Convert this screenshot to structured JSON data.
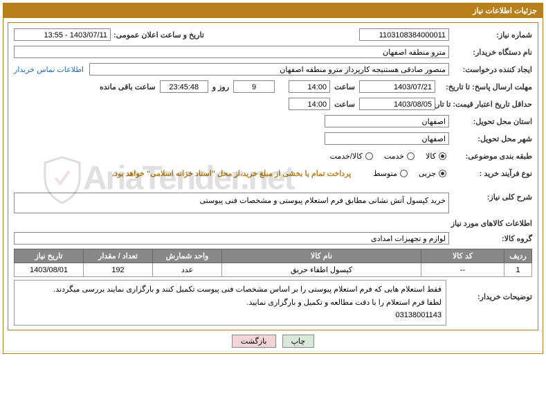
{
  "colors": {
    "accent": "#b8801a",
    "link": "#1a6ec0",
    "table_header_bg": "#888888",
    "table_header_fg": "#ffffff",
    "btn_print_bg": "#d9e8d9",
    "btn_back_bg": "#f2d4d9"
  },
  "header": {
    "title": "جزئیات اطلاعات نیاز"
  },
  "labels": {
    "need_no": "شماره نیاز:",
    "announce_dt": "تاریخ و ساعت اعلان عمومی:",
    "buyer_org": "نام دستگاه خریدار:",
    "requester": "ایجاد کننده درخواست:",
    "contact": "اطلاعات تماس خریدار",
    "resp_deadline": "مهلت ارسال پاسخ: تا تاریخ:",
    "hour": "ساعت",
    "days_and": "روز و",
    "remain": "ساعت باقی مانده",
    "price_valid": "حداقل تاریخ اعتبار قیمت: تا تاریخ:",
    "deliv_prov": "استان محل تحویل:",
    "deliv_city": "شهر محل تحویل:",
    "subject_cls": "طبقه بندی موضوعی:",
    "cls_goods": "کالا",
    "cls_service": "خدمت",
    "cls_both": "کالا/خدمت",
    "proc_type": "نوع فرآیند خرید :",
    "proc_partial": "جزیی",
    "proc_medium": "متوسط",
    "proc_note": "پرداخت تمام یا بخشی از مبلغ خرید،از محل \"اسناد خزانه اسلامی\" خواهد بود.",
    "need_summary": "شرح کلی نیاز:",
    "goods_info": "اطلاعات کالاهای مورد نیاز",
    "goods_group": "گروه کالا:",
    "buyer_notes": "توضیحات خریدار:",
    "btn_print": "چاپ",
    "btn_back": "بازگشت"
  },
  "values": {
    "need_no": "1103108384000011",
    "announce_dt": "1403/07/11 - 13:55",
    "buyer_org": "مترو منطقه اصفهان",
    "requester": "منصور صادقی هستنیجه کارپرداز مترو منطقه اصفهان",
    "resp_date": "1403/07/21",
    "resp_time": "14:00",
    "days_left": "9",
    "countdown": "23:45:48",
    "price_valid_date": "1403/08/05",
    "price_valid_time": "14:00",
    "deliv_prov": "اصفهان",
    "deliv_city": "اصفهان",
    "need_summary": "خرید کپسول آتش نشانی مطابق فرم استعلام پیوستی و مشخصات فنی پیوستی",
    "goods_group": "لوازم و تجهیزات امدادی",
    "buyer_notes": "فقط استعلام هایی که فرم استعلام پیوستی را بر اساس مشخصات فنی پیوست تکمیل کنند و بارگزاری نمایند بررسی میگردند.\nلطفا فرم استعلام را با دقت مطالعه و تکمیل و بارگزاری نمایید.\n03138001143"
  },
  "radios": {
    "subject": "goods",
    "proc": "partial"
  },
  "table": {
    "columns": [
      "ردیف",
      "کد کالا",
      "نام کالا",
      "واحد شمارش",
      "تعداد / مقدار",
      "تاریخ نیاز"
    ],
    "col_widths": [
      "40px",
      "120px",
      "auto",
      "100px",
      "100px",
      "100px"
    ],
    "rows": [
      [
        "1",
        "--",
        "کپسول اطفاء حریق",
        "عدد",
        "192",
        "1403/08/01"
      ]
    ]
  },
  "watermark": "AriaTender.net"
}
